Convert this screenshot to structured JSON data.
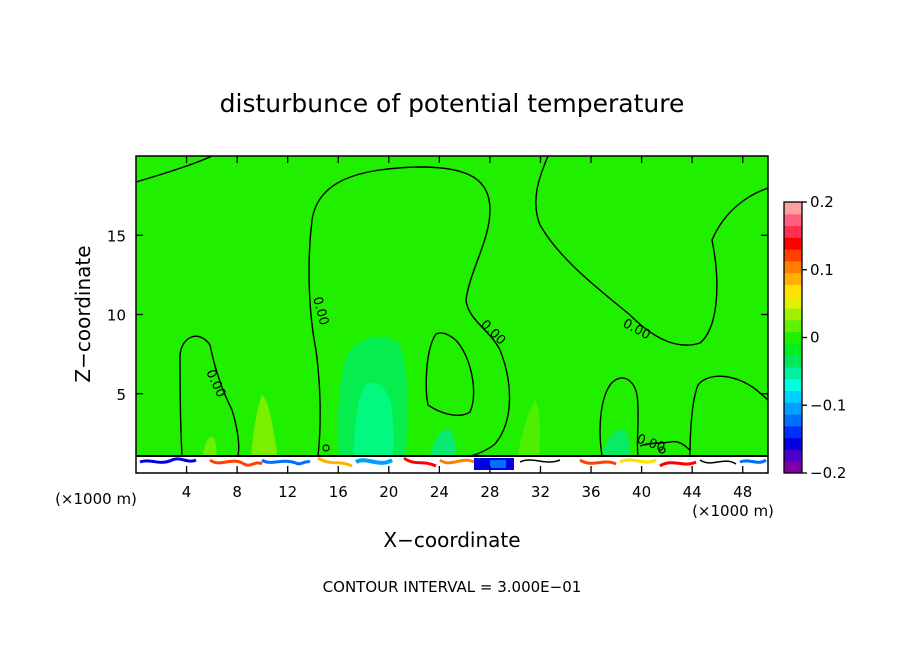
{
  "chart_data": {
    "type": "heatmap",
    "title": "disturbunce of potential temperature",
    "xlabel": "X−coordinate",
    "ylabel": "Z−coordinate",
    "x_unit_left": "(×1000 m)",
    "x_unit_right": "(×1000 m)",
    "xlim": [
      0,
      50
    ],
    "ylim": [
      0,
      20
    ],
    "x_ticks": [
      4,
      8,
      12,
      16,
      20,
      24,
      28,
      32,
      36,
      40,
      44,
      48
    ],
    "y_ticks": [
      5,
      10,
      15
    ],
    "contour_labels": [
      "0.00",
      "0.00",
      "0.00",
      "0.00",
      "0.00"
    ],
    "footer": "CONTOUR INTERVAL = 3.000E−01",
    "colorbar": {
      "range": [
        -0.2,
        0.2
      ],
      "tick_labels": [
        "0.2",
        "0.1",
        "0",
        "−0.1",
        "−0.2"
      ],
      "tick_values": [
        0.2,
        0.1,
        0,
        -0.1,
        -0.2
      ],
      "colors": [
        "#7f00a6",
        "#4c00cc",
        "#0000e0",
        "#0030ff",
        "#0070ff",
        "#00a0ff",
        "#00d0ff",
        "#00ffe0",
        "#00f0a0",
        "#00e860",
        "#00ee20",
        "#20f000",
        "#60f000",
        "#a0f000",
        "#e0f000",
        "#ffe000",
        "#ffb000",
        "#ff8000",
        "#ff4000",
        "#ff0000",
        "#ff3050",
        "#ff6080",
        "#ffa0a0"
      ]
    },
    "background_value": 0,
    "grid": false
  }
}
